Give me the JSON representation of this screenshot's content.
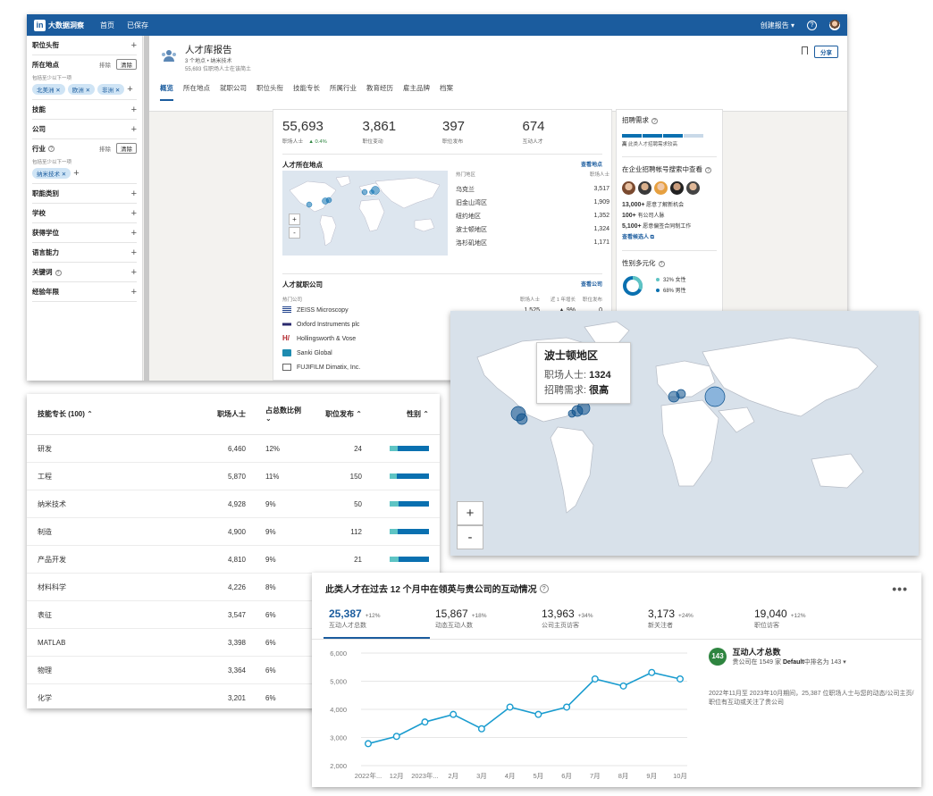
{
  "app": {
    "logo_text": "大数据洞察",
    "nav": [
      "首页",
      "已保存"
    ],
    "create_report": "创建报告 ▾",
    "help": "?"
  },
  "sidebar": {
    "sections": [
      {
        "label": "职位头衔",
        "type": "collapsed"
      },
      {
        "label": "所在地点",
        "type": "expanded",
        "exclude": "排除",
        "clear": "清除",
        "hint": "包括至少以下一项",
        "chips": [
          "北美洲 ✕",
          "欧洲 ✕",
          "非洲 ✕"
        ]
      },
      {
        "label": "技能",
        "type": "collapsed"
      },
      {
        "label": "公司",
        "type": "collapsed"
      },
      {
        "label": "行业",
        "type": "expanded",
        "exclude": "排除",
        "clear": "清除",
        "hint": "包括至少以下一项",
        "chips": [
          "纳米技术 ✕"
        ]
      },
      {
        "label": "职能类别",
        "type": "collapsed"
      },
      {
        "label": "学校",
        "type": "collapsed"
      },
      {
        "label": "获得学位",
        "type": "collapsed"
      },
      {
        "label": "语言能力",
        "type": "collapsed"
      },
      {
        "label": "关键词",
        "type": "collapsed"
      },
      {
        "label": "经验年限",
        "type": "collapsed"
      }
    ],
    "plus": "+"
  },
  "report": {
    "title": "人才库报告",
    "subtitle": "3 个地点 • 纳米技术",
    "count_line": "55,693 位职场人士在该简土",
    "share": "分享",
    "tabs": [
      "概览",
      "所在地点",
      "就职公司",
      "职位头衔",
      "技能专长",
      "所属行业",
      "教育经历",
      "雇主品牌",
      "档案"
    ]
  },
  "stats": [
    {
      "value": "55,693",
      "label": "职场人士",
      "delta": "▲ 0.4%"
    },
    {
      "value": "3,861",
      "label": "职位变动",
      "delta": ""
    },
    {
      "value": "397",
      "label": "职位发布",
      "delta": ""
    },
    {
      "value": "674",
      "label": "互动人才",
      "delta": ""
    }
  ],
  "locations": {
    "title": "人才所在地点",
    "link": "查看地点",
    "col_left": "热门地区",
    "col_right": "职场人士",
    "rows": [
      {
        "name": "乌克兰",
        "value": "3,517"
      },
      {
        "name": "旧金山湾区",
        "value": "1,909"
      },
      {
        "name": "纽约地区",
        "value": "1,352"
      },
      {
        "name": "波士顿地区",
        "value": "1,324"
      },
      {
        "name": "洛杉矶地区",
        "value": "1,171"
      }
    ],
    "zoom_in": "+",
    "zoom_out": "-"
  },
  "companies": {
    "title": "人才就职公司",
    "link": "查看公司",
    "col_name": "热门公司",
    "col_a": "职场人士",
    "col_b": "近 1 年增长",
    "col_c": "职位发布",
    "rows": [
      {
        "name": "ZEISS Microscopy",
        "a": "1,525",
        "b": "▲ 9%",
        "c": "0",
        "color": "#1b3e8a"
      },
      {
        "name": "Oxford Instruments plc",
        "a": "",
        "b": "",
        "c": "",
        "color": "#2a2a6e"
      },
      {
        "name": "Hollingsworth & Vose",
        "a": "",
        "b": "",
        "c": "",
        "color": "#b3262c"
      },
      {
        "name": "Sanki Global",
        "a": "",
        "b": "",
        "c": "",
        "color": "#1e8bb0"
      },
      {
        "name": "FUJIFILM Dimatix, Inc.",
        "a": "",
        "b": "",
        "c": "",
        "color": "#666666"
      }
    ]
  },
  "rail": {
    "demand_title": "招聘需求",
    "demand_level": "高",
    "demand_desc": "此类人才招聘需求较高",
    "search_title": "在企业招聘帐号搜索中查看",
    "kv": [
      {
        "n": "13,000+",
        "t": "愿意了解新机会"
      },
      {
        "n": "100+",
        "t": "有公司人脉"
      },
      {
        "n": "5,100+",
        "t": "愿意偏签合同制工作"
      }
    ],
    "view_people": "查看候选人 ⧉",
    "diversity_title": "性别多元化",
    "female": "32% 女性",
    "male": "68% 男性",
    "female_pct": 32,
    "help": "?"
  },
  "skills": {
    "headers": [
      "技能专长 (100) ⌃",
      "职场人士",
      "占总数比例 ⌄",
      "职位发布 ⌃",
      "性别 ⌃"
    ],
    "rows": [
      {
        "name": "研发",
        "people": "6,460",
        "pct": "12%",
        "jobs": "24",
        "female": 0.2
      },
      {
        "name": "工程",
        "people": "5,870",
        "pct": "11%",
        "jobs": "150",
        "female": 0.18
      },
      {
        "name": "纳米技术",
        "people": "4,928",
        "pct": "9%",
        "jobs": "50",
        "female": 0.22
      },
      {
        "name": "制造",
        "people": "4,900",
        "pct": "9%",
        "jobs": "112",
        "female": 0.2
      },
      {
        "name": "产品开发",
        "people": "4,810",
        "pct": "9%",
        "jobs": "21",
        "female": 0.22
      },
      {
        "name": "材料科学",
        "people": "4,226",
        "pct": "8%",
        "jobs": "",
        "female": 0.25
      },
      {
        "name": "表征",
        "people": "3,547",
        "pct": "6%",
        "jobs": "",
        "female": 0.25
      },
      {
        "name": "MATLAB",
        "people": "3,398",
        "pct": "6%",
        "jobs": "",
        "female": 0.2
      },
      {
        "name": "物理",
        "people": "3,364",
        "pct": "6%",
        "jobs": "",
        "female": 0.18
      },
      {
        "name": "化学",
        "people": "3,201",
        "pct": "6%",
        "jobs": "",
        "female": 0.3
      }
    ]
  },
  "bigmap": {
    "tooltip_title": "波士顿地区",
    "tooltip_k1": "职场人士:",
    "tooltip_v1": "1324",
    "tooltip_k2": "招聘需求:",
    "tooltip_v2": "很高",
    "zoom_in": "+",
    "zoom_out": "-"
  },
  "interaction": {
    "title": "此类人才在过去 12 个月中在领英与贵公司的互动情况",
    "help": "?",
    "more": "•••",
    "metrics": [
      {
        "value": "25,387",
        "pct": "+12%",
        "label": "互动人才总数"
      },
      {
        "value": "15,867",
        "pct": "+18%",
        "label": "动态互动人数"
      },
      {
        "value": "13,963",
        "pct": "+34%",
        "label": "公司主页访客"
      },
      {
        "value": "3,173",
        "pct": "+24%",
        "label": "新关注者"
      },
      {
        "value": "19,040",
        "pct": "+12%",
        "label": "职位访客"
      }
    ],
    "badge": "143",
    "side_title": "互动人才总数",
    "side_rank_pre": "贵公司在 1549 家",
    "side_rank_bold": "Default",
    "side_rank_post": "中排名为 143 ▾",
    "side_desc": "2022年11月至 2023年10月期间，25,387 位职场人士与您的动态/公司主页/职位有互动或关注了贵公司"
  },
  "chart_data": {
    "type": "line",
    "categories": [
      "2022年...",
      "12月",
      "2023年...",
      "2月",
      "3月",
      "4月",
      "5月",
      "6月",
      "7月",
      "8月",
      "9月",
      "10月"
    ],
    "series": [
      {
        "values": [
          2780,
          3040,
          3550,
          3820,
          3310,
          4080,
          3820,
          4080,
          5080,
          4830,
          5310,
          5080
        ],
        "color": "#1a9ccf"
      }
    ],
    "ylim": [
      2000,
      6000
    ],
    "yticks": [
      "2,000",
      "3,000",
      "4,000",
      "5,000",
      "6,000"
    ],
    "grid": true
  }
}
